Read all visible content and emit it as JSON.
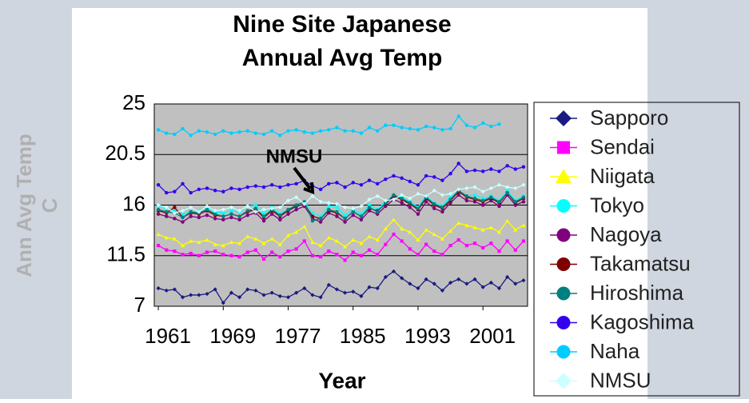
{
  "chart_data": {
    "type": "line",
    "title": [
      "Nine Site Japanese",
      "Annual Avg Temp"
    ],
    "ylabel": [
      "Ann Avg Temp",
      "C"
    ],
    "xlabel": "Year",
    "annotation": "NMSU",
    "x": [
      1961,
      1962,
      1963,
      1964,
      1965,
      1966,
      1967,
      1968,
      1969,
      1970,
      1971,
      1972,
      1973,
      1974,
      1975,
      1976,
      1977,
      1978,
      1979,
      1980,
      1981,
      1982,
      1983,
      1984,
      1985,
      1986,
      1987,
      1988,
      1989,
      1990,
      1991,
      1992,
      1993,
      1994,
      1995,
      1996,
      1997,
      1998,
      1999,
      2000,
      2001,
      2002,
      2003,
      2004,
      2005,
      2006
    ],
    "xlim": [
      1960.5,
      2006.5
    ],
    "xticks": [
      1961,
      1969,
      1977,
      1985,
      1993,
      2001
    ],
    "ylim": [
      7,
      25
    ],
    "yticks": [
      7,
      11.5,
      16,
      20.5,
      25
    ],
    "grid": true,
    "legend": "right",
    "series": [
      {
        "name": "Sapporo",
        "color": "#1a1a80",
        "marker": "diamond",
        "values": [
          8.6,
          8.4,
          8.5,
          7.8,
          8.0,
          8.0,
          8.1,
          8.5,
          7.3,
          8.2,
          7.8,
          8.5,
          8.4,
          8.0,
          8.2,
          7.9,
          7.8,
          8.2,
          8.6,
          8.0,
          7.8,
          8.9,
          8.5,
          8.2,
          8.3,
          7.9,
          8.7,
          8.6,
          9.6,
          10.1,
          9.5,
          9.0,
          8.6,
          9.4,
          9.0,
          8.4,
          9.1,
          9.4,
          9.0,
          9.4,
          8.7,
          9.1,
          8.6,
          9.6,
          9.0,
          9.3
        ]
      },
      {
        "name": "Sendai",
        "color": "#ff00ff",
        "marker": "square",
        "values": [
          12.4,
          12.0,
          11.9,
          11.6,
          11.7,
          11.5,
          11.8,
          11.9,
          11.6,
          11.5,
          11.4,
          11.8,
          12.0,
          11.2,
          11.8,
          11.4,
          11.9,
          12.1,
          12.8,
          11.5,
          11.4,
          11.9,
          11.6,
          11.1,
          11.8,
          11.5,
          12.0,
          11.6,
          12.5,
          13.4,
          12.8,
          12.1,
          11.6,
          12.5,
          11.9,
          11.6,
          12.4,
          12.9,
          12.4,
          12.6,
          12.2,
          12.6,
          11.9,
          12.8,
          12.0,
          12.8
        ]
      },
      {
        "name": "Niigata",
        "color": "#ffff00",
        "marker": "triangle",
        "values": [
          13.4,
          13.1,
          13.0,
          12.4,
          12.8,
          12.7,
          12.9,
          12.5,
          12.4,
          12.7,
          12.6,
          13.2,
          13.0,
          12.6,
          13.0,
          12.5,
          13.3,
          13.6,
          14.1,
          12.7,
          12.4,
          13.1,
          12.8,
          12.3,
          12.9,
          12.6,
          13.2,
          12.9,
          13.9,
          14.7,
          13.9,
          13.6,
          12.9,
          13.8,
          13.4,
          13.0,
          13.7,
          14.4,
          14.2,
          14.0,
          13.8,
          14.0,
          13.6,
          14.6,
          13.8,
          14.2
        ]
      },
      {
        "name": "Tokyo",
        "color": "#00ffff",
        "marker": "circle",
        "values": [
          15.9,
          15.7,
          15.5,
          15.2,
          15.4,
          15.5,
          15.8,
          15.4,
          15.3,
          15.5,
          15.4,
          15.9,
          16.0,
          15.3,
          15.8,
          15.2,
          15.6,
          15.8,
          16.3,
          15.3,
          15.0,
          15.9,
          15.8,
          15.1,
          15.6,
          15.2,
          16.0,
          15.6,
          16.3,
          16.9,
          16.7,
          16.3,
          15.8,
          16.8,
          16.2,
          15.9,
          16.8,
          17.1,
          16.8,
          16.9,
          16.6,
          16.8,
          16.4,
          17.3,
          16.4,
          16.8
        ]
      },
      {
        "name": "Nagoya",
        "color": "#800080",
        "marker": "circle",
        "values": [
          15.2,
          15.0,
          14.8,
          14.5,
          15.0,
          14.9,
          15.1,
          14.8,
          14.7,
          14.9,
          14.7,
          15.1,
          15.3,
          14.6,
          15.2,
          14.7,
          15.2,
          15.6,
          15.9,
          14.8,
          14.5,
          15.3,
          15.0,
          14.5,
          15.1,
          14.7,
          15.5,
          15.2,
          15.9,
          16.5,
          16.2,
          15.8,
          15.2,
          16.3,
          15.7,
          15.4,
          16.2,
          16.9,
          16.4,
          16.3,
          16.0,
          16.4,
          15.9,
          16.9,
          16.0,
          16.3
        ]
      },
      {
        "name": "Takamatsu",
        "color": "#800000",
        "marker": "circle",
        "values": [
          15.5,
          15.3,
          15.8,
          14.9,
          15.3,
          15.2,
          15.5,
          15.1,
          15.0,
          15.2,
          15.0,
          15.4,
          15.6,
          14.9,
          15.5,
          15.0,
          15.5,
          15.9,
          16.1,
          15.0,
          14.8,
          15.5,
          15.3,
          14.8,
          15.4,
          15.0,
          15.7,
          15.5,
          16.1,
          16.8,
          16.5,
          16.1,
          15.6,
          16.6,
          16.0,
          15.7,
          16.4,
          17.2,
          16.7,
          16.5,
          16.3,
          16.6,
          16.2,
          17.1,
          16.2,
          16.6
        ]
      },
      {
        "name": "Hiroshima",
        "color": "#008080",
        "marker": "circle",
        "values": [
          15.6,
          15.4,
          15.3,
          14.9,
          15.4,
          15.3,
          15.6,
          15.2,
          15.0,
          15.2,
          15.0,
          15.5,
          15.7,
          15.0,
          15.6,
          15.1,
          15.6,
          16.0,
          16.3,
          14.6,
          14.8,
          15.6,
          15.4,
          14.8,
          15.4,
          15.0,
          15.8,
          15.4,
          16.2,
          16.9,
          16.6,
          16.2,
          15.7,
          16.7,
          16.1,
          15.8,
          16.5,
          17.3,
          16.8,
          16.6,
          16.4,
          16.7,
          16.3,
          17.1,
          16.3,
          16.7
        ]
      },
      {
        "name": "Kagoshima",
        "color": "#3300ee",
        "marker": "circle",
        "values": [
          17.8,
          17.1,
          17.2,
          17.9,
          17.1,
          17.4,
          17.5,
          17.3,
          17.2,
          17.5,
          17.4,
          17.6,
          17.7,
          17.6,
          17.8,
          17.6,
          17.8,
          17.9,
          18.2,
          17.7,
          17.4,
          17.9,
          18.0,
          17.6,
          18.0,
          17.8,
          18.2,
          17.9,
          18.3,
          18.6,
          18.4,
          18.1,
          17.8,
          18.6,
          18.5,
          18.2,
          18.8,
          19.7,
          19.0,
          19.1,
          19.0,
          19.2,
          19.0,
          19.5,
          19.2,
          19.4
        ]
      },
      {
        "name": "Naha",
        "color": "#00ccff",
        "marker": "circle",
        "values": [
          22.7,
          22.4,
          22.3,
          22.8,
          22.2,
          22.6,
          22.5,
          22.3,
          22.6,
          22.4,
          22.5,
          22.6,
          22.4,
          22.3,
          22.6,
          22.2,
          22.6,
          22.7,
          22.5,
          22.4,
          22.6,
          22.7,
          22.9,
          22.6,
          22.6,
          22.4,
          22.9,
          22.6,
          23.1,
          23.1,
          22.9,
          22.8,
          22.7,
          23.0,
          22.9,
          22.7,
          22.8,
          23.9,
          23.1,
          22.9,
          23.3,
          23.0,
          23.2,
          null,
          null,
          null
        ]
      },
      {
        "name": "NMSU",
        "color": "#ccffff",
        "marker": "diamond",
        "values": [
          16.0,
          15.8,
          15.3,
          15.5,
          15.8,
          15.4,
          15.9,
          15.5,
          15.6,
          15.8,
          15.5,
          15.9,
          15.4,
          15.6,
          15.7,
          15.8,
          16.4,
          16.7,
          16.1,
          16.8,
          16.3,
          16.2,
          16.1,
          15.8,
          15.7,
          15.9,
          16.5,
          16.8,
          16.4,
          16.5,
          16.9,
          16.6,
          17.0,
          16.8,
          17.3,
          16.9,
          17.0,
          17.4,
          17.5,
          17.6,
          17.2,
          17.5,
          17.8,
          17.6,
          17.5,
          17.8
        ]
      }
    ]
  }
}
